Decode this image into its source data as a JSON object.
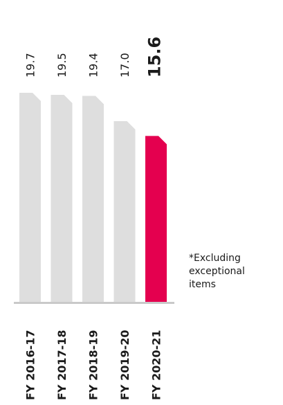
{
  "chart_data": {
    "type": "bar",
    "categories": [
      "FY 2016-17",
      "FY 2017-18",
      "FY 2018-19",
      "FY 2019-20",
      "FY 2020-21"
    ],
    "values": [
      19.7,
      19.5,
      19.4,
      17.0,
      15.6
    ],
    "value_labels": [
      "19.7",
      "19.5",
      "19.4",
      "17.0",
      "15.6"
    ],
    "title": "",
    "xlabel": "",
    "ylabel": "",
    "highlight_index": 4,
    "colors": {
      "bar": "#dedede",
      "highlight": "#e4004f",
      "baseline": "#c9c9c9",
      "text": "#1a1a1a"
    },
    "grid": false,
    "legend": "none"
  },
  "note": "*Excluding exceptional items"
}
